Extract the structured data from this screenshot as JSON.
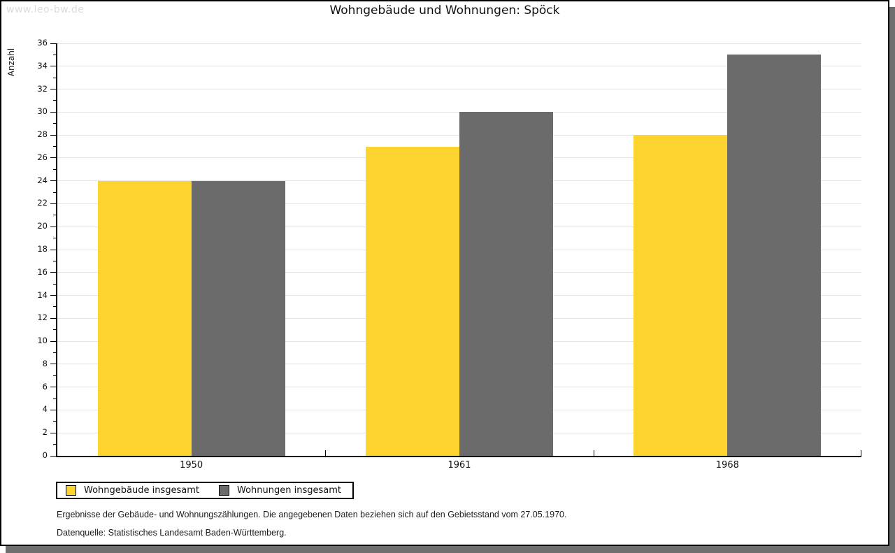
{
  "page": {
    "watermark": "www.leo-bw.de",
    "title": "Wohngebäude und Wohnungen: Spöck"
  },
  "chart_data": {
    "type": "bar",
    "title": "Wohngebäude und Wohnungen: Spöck",
    "categories": [
      "1950",
      "1961",
      "1968"
    ],
    "series": [
      {
        "name": "Wohngebäude insgesamt",
        "color": "#fdd42d",
        "values": [
          24,
          27,
          28
        ]
      },
      {
        "name": "Wohnungen insgesamt",
        "color": "#6b6b6b",
        "values": [
          24,
          30,
          35
        ]
      }
    ],
    "xlabel": "",
    "ylabel": "Anzahl",
    "ylim": [
      0,
      36
    ],
    "ytick_major": 2,
    "ytick_minor": 1,
    "grid": true,
    "legend_position": "bottom-left"
  },
  "footnotes": {
    "line1": "Ergebnisse der Gebäude- und Wohnungszählungen. Die angegebenen Daten beziehen sich auf den Gebietsstand vom 27.05.1970.",
    "line2": "Datenquelle: Statistisches Landesamt Baden-Württemberg."
  }
}
